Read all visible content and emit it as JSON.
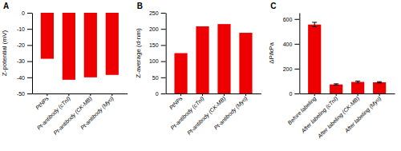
{
  "chart_data": [
    {
      "type": "bar",
      "title": "A",
      "categories": [
        "PtNPs",
        "Pt-antibody (cTnI)",
        "Pt-antibody (CK-MB)",
        "Pt-antibody (Myo)"
      ],
      "values": [
        -28.5,
        -41.5,
        -40.0,
        -38.5
      ],
      "ylabel": "Z-potential (mV)",
      "color": "#EE0000",
      "ylim": [
        -50,
        0
      ],
      "yticks": [
        -50,
        -40,
        -30,
        -20,
        -10,
        0
      ]
    },
    {
      "type": "bar",
      "title": "B",
      "categories": [
        "PtNPs",
        "Pt-antibody (cTnI)",
        "Pt-antibody (CK-MB)",
        "Pt-antibody (Myo)"
      ],
      "values": [
        125,
        208,
        215,
        188
      ],
      "ylabel": "Z-average (d·nm)",
      "color": "#EE0000",
      "ylim": [
        0,
        250
      ],
      "yticks": [
        0,
        50,
        100,
        150,
        200,
        250
      ]
    },
    {
      "type": "bar",
      "title": "C",
      "categories": [
        "Before labeling",
        "After labeling (cTnI)",
        "After labeling (CK-MB)",
        "After labeling (Myo)"
      ],
      "values": [
        555,
        73,
        93,
        90
      ],
      "errors": [
        18,
        5,
        7,
        5
      ],
      "ylabel": "ΔP/kPa",
      "color": "#EE0000",
      "ylim": [
        0,
        650
      ],
      "yticks": [
        0,
        200,
        400,
        600
      ]
    }
  ]
}
